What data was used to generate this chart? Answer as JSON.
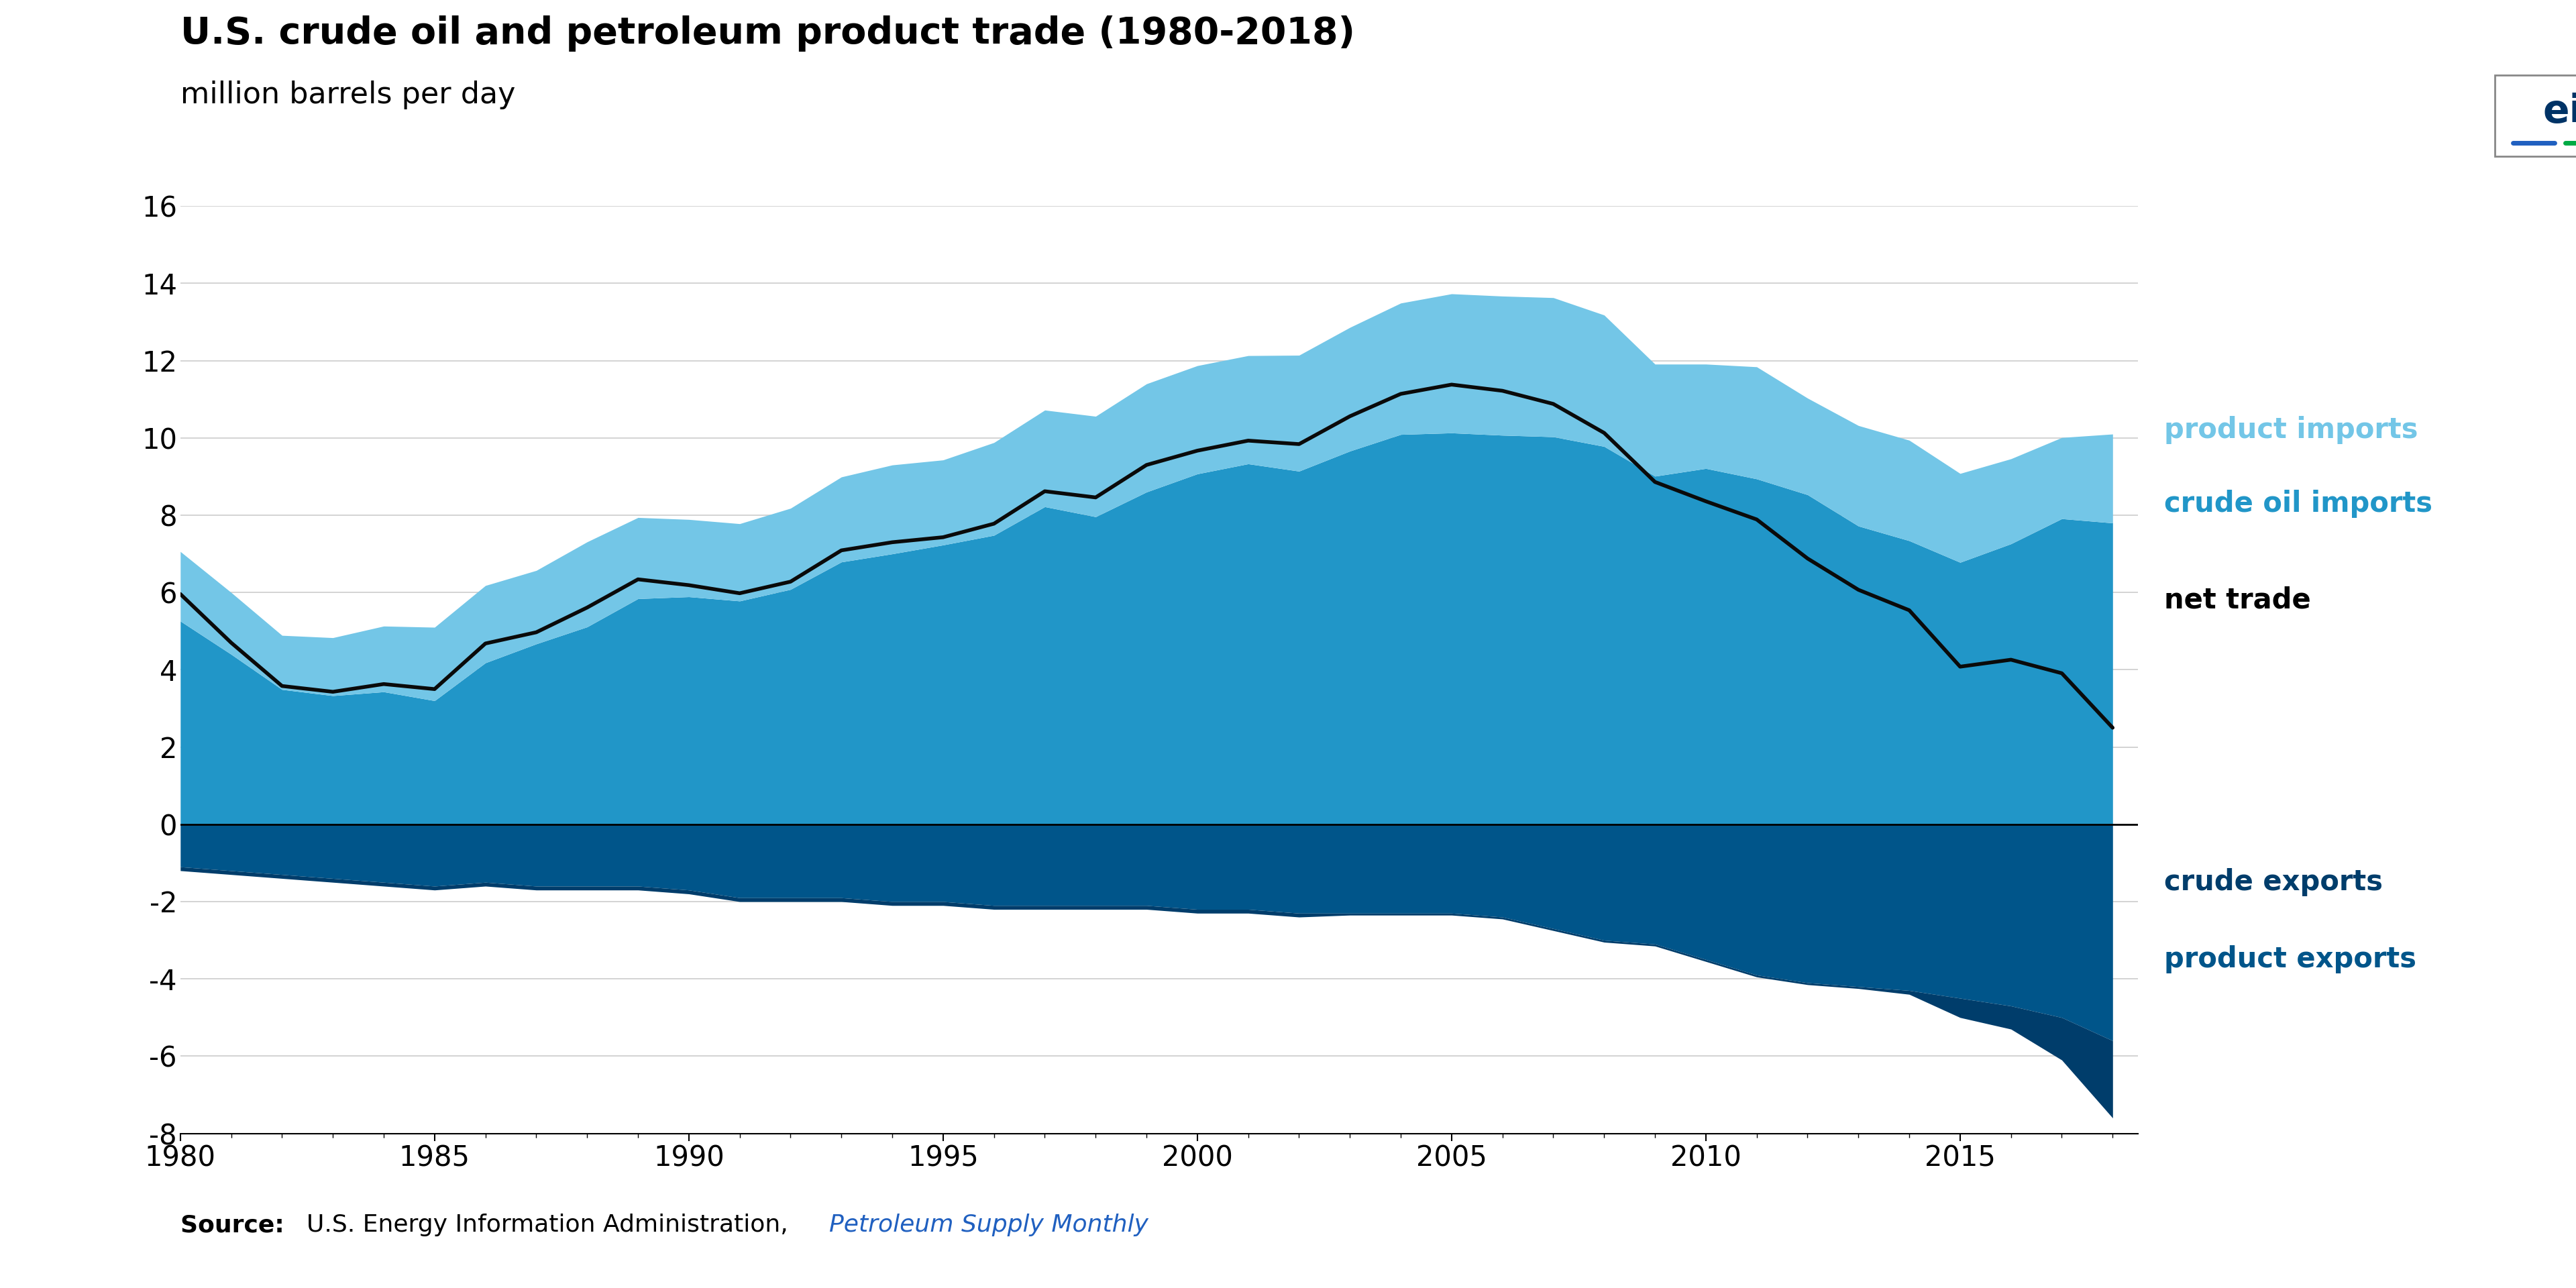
{
  "title": "U.S. crude oil and petroleum product trade (1980-2018)",
  "subtitle": "million barrels per day",
  "ylim": [
    -8,
    16
  ],
  "yticks": [
    -8,
    -6,
    -4,
    -2,
    0,
    2,
    4,
    6,
    8,
    10,
    12,
    14,
    16
  ],
  "xlim": [
    1980,
    2018.5
  ],
  "xticks": [
    1980,
    1985,
    1990,
    1995,
    2000,
    2005,
    2010,
    2015
  ],
  "colors": {
    "product_imports": "#73C6E7",
    "crude_oil_imports": "#2196C8",
    "crude_exports": "#003D6B",
    "product_exports": "#00558A",
    "net_trade": "#0A0A0A",
    "grid": "#CCCCCC",
    "background": "#FFFFFF"
  },
  "years": [
    1980,
    1981,
    1982,
    1983,
    1984,
    1985,
    1986,
    1987,
    1988,
    1989,
    1990,
    1991,
    1992,
    1993,
    1994,
    1995,
    1996,
    1997,
    1998,
    1999,
    2000,
    2001,
    2002,
    2003,
    2004,
    2005,
    2006,
    2007,
    2008,
    2009,
    2010,
    2011,
    2012,
    2013,
    2014,
    2015,
    2016,
    2017,
    2018
  ],
  "crude_oil_imports": [
    5.26,
    4.4,
    3.49,
    3.33,
    3.43,
    3.2,
    4.18,
    4.67,
    5.11,
    5.84,
    5.89,
    5.78,
    6.08,
    6.79,
    7.0,
    7.23,
    7.48,
    8.22,
    7.96,
    8.6,
    9.07,
    9.33,
    9.14,
    9.66,
    10.09,
    10.13,
    10.07,
    10.03,
    9.78,
    9.01,
    9.21,
    8.94,
    8.53,
    7.72,
    7.34,
    6.78,
    7.26,
    7.91,
    7.8
  ],
  "product_imports": [
    1.8,
    1.6,
    1.4,
    1.5,
    1.7,
    1.9,
    2.0,
    1.9,
    2.2,
    2.1,
    2.0,
    2.0,
    2.1,
    2.2,
    2.3,
    2.2,
    2.4,
    2.5,
    2.6,
    2.8,
    2.8,
    2.8,
    3.0,
    3.2,
    3.4,
    3.6,
    3.6,
    3.6,
    3.4,
    2.9,
    2.7,
    2.9,
    2.5,
    2.6,
    2.6,
    2.3,
    2.2,
    2.1,
    2.3
  ],
  "crude_exports": [
    0.1,
    0.1,
    0.1,
    0.1,
    0.1,
    0.1,
    0.1,
    0.1,
    0.1,
    0.1,
    0.1,
    0.1,
    0.1,
    0.1,
    0.1,
    0.1,
    0.1,
    0.1,
    0.1,
    0.1,
    0.1,
    0.1,
    0.1,
    0.05,
    0.05,
    0.05,
    0.05,
    0.05,
    0.05,
    0.05,
    0.05,
    0.05,
    0.05,
    0.05,
    0.1,
    0.5,
    0.6,
    1.1,
    2.0
  ],
  "product_exports": [
    1.1,
    1.2,
    1.3,
    1.4,
    1.5,
    1.6,
    1.5,
    1.6,
    1.6,
    1.6,
    1.7,
    1.9,
    1.9,
    1.9,
    2.0,
    2.0,
    2.1,
    2.1,
    2.1,
    2.1,
    2.2,
    2.2,
    2.3,
    2.3,
    2.3,
    2.3,
    2.4,
    2.7,
    3.0,
    3.1,
    3.5,
    3.9,
    4.1,
    4.2,
    4.3,
    4.5,
    4.7,
    5.0,
    5.6
  ],
  "net_trade": [
    5.96,
    4.7,
    3.58,
    3.43,
    3.63,
    3.5,
    4.68,
    4.97,
    5.61,
    6.34,
    6.19,
    5.98,
    6.28,
    7.09,
    7.3,
    7.43,
    7.78,
    8.62,
    8.46,
    9.3,
    9.67,
    9.93,
    9.84,
    10.56,
    11.14,
    11.38,
    11.22,
    10.88,
    10.13,
    8.86,
    8.36,
    7.89,
    6.88,
    6.07,
    5.54,
    4.08,
    4.26,
    3.91,
    2.5
  ]
}
